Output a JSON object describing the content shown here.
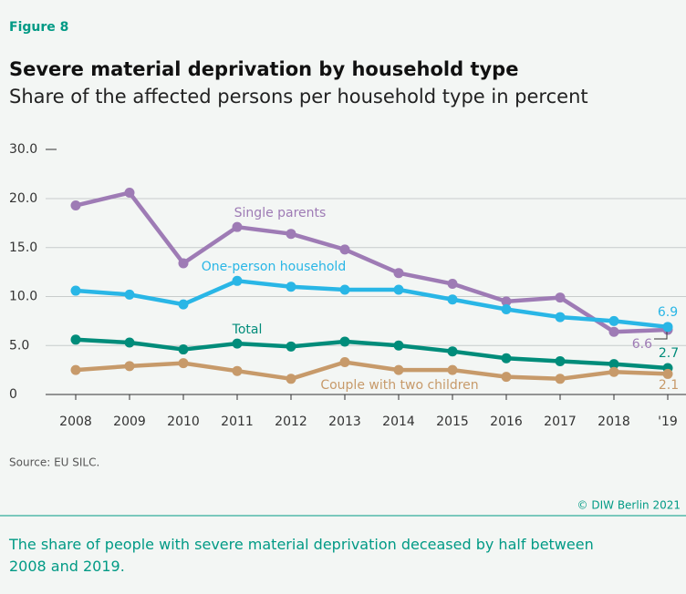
{
  "figure_label": "Figure 8",
  "source": "Source: EU SILC.",
  "copyright": "© DIW Berlin 2021",
  "caption": "The share of people with severe material deprivation deceased by half between 2008 and 2019.",
  "chart_data": {
    "type": "line",
    "title": "Severe material deprivation by household type",
    "subtitle": "Share of the affected persons per household type in percent",
    "categories": [
      "2008",
      "2009",
      "2010",
      "2011",
      "2012",
      "2013",
      "2014",
      "2015",
      "2016",
      "2017",
      "2018",
      "'19"
    ],
    "ylim": [
      0,
      30
    ],
    "ybreak": [
      20,
      30
    ],
    "yticks": [
      0,
      {
        "value": 5,
        "label": "5.0"
      },
      {
        "value": 10,
        "label": "10.0"
      },
      {
        "value": 15,
        "label": "15.0"
      },
      {
        "value": 20,
        "label": "20.0"
      },
      {
        "value": 30,
        "label": "30.0"
      }
    ],
    "grid": true,
    "series": [
      {
        "name": "Single parents",
        "color": "#9e7bb5",
        "values": [
          19.3,
          21.2,
          13.4,
          17.1,
          16.4,
          14.8,
          12.4,
          11.3,
          9.5,
          9.9,
          6.4,
          6.6
        ],
        "value_labels": [
          null,
          null,
          null,
          null,
          null,
          null,
          null,
          null,
          null,
          null,
          null,
          "6.6"
        ]
      },
      {
        "name": "One-person household",
        "color": "#29b6e6",
        "values": [
          10.6,
          10.2,
          9.2,
          11.6,
          11.0,
          10.7,
          10.7,
          9.7,
          8.7,
          7.9,
          7.5,
          6.9
        ],
        "value_labels": [
          null,
          null,
          null,
          null,
          null,
          null,
          null,
          null,
          null,
          null,
          null,
          "6.9"
        ]
      },
      {
        "name": "Total",
        "color": "#008c7a",
        "values": [
          5.6,
          5.3,
          4.6,
          5.2,
          4.9,
          5.4,
          5.0,
          4.4,
          3.7,
          3.4,
          3.1,
          2.7
        ],
        "value_labels": [
          null,
          null,
          null,
          null,
          null,
          null,
          null,
          null,
          null,
          null,
          null,
          "2.7"
        ]
      },
      {
        "name": "Couple with two children",
        "color": "#c79a6a",
        "values": [
          2.5,
          2.9,
          3.2,
          2.4,
          1.6,
          3.3,
          2.5,
          2.5,
          1.8,
          1.6,
          2.3,
          2.1
        ],
        "value_labels": [
          null,
          null,
          null,
          null,
          null,
          null,
          null,
          null,
          null,
          null,
          null,
          "2.1"
        ]
      }
    ]
  }
}
